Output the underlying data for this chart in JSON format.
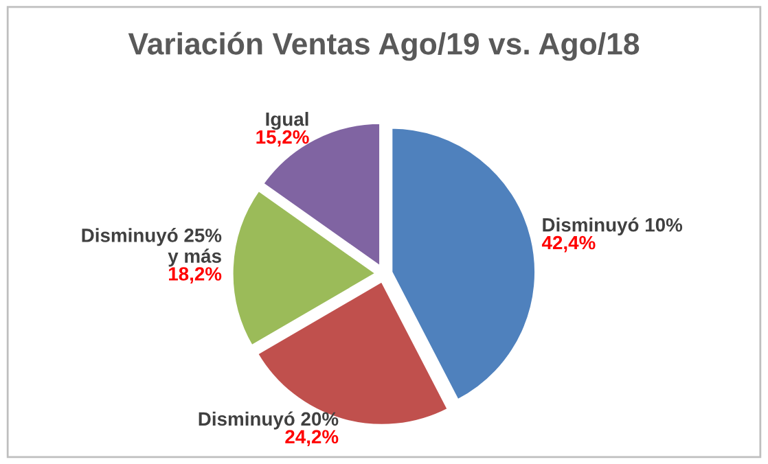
{
  "chart_data": {
    "type": "pie",
    "title": "Variación Ventas Ago/19 vs. Ago/18",
    "categories": [
      "Disminuyó 10%",
      "Disminuyó 20%",
      "Disminuyó 25%\ny más",
      "Igual"
    ],
    "values": [
      42.4,
      24.2,
      18.2,
      15.2
    ],
    "value_labels": [
      "42,4%",
      "24,2%",
      "18,2%",
      "15,2%"
    ],
    "colors": [
      "#4f81bd",
      "#c0504d",
      "#9bbb59",
      "#8064a2"
    ],
    "legend": false
  }
}
